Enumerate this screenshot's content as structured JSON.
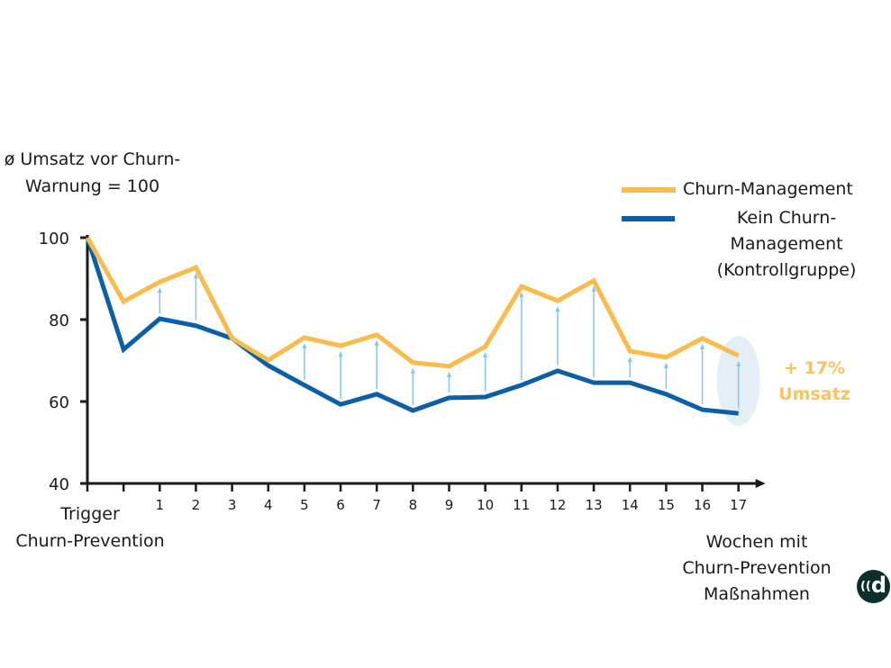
{
  "chart_data": {
    "type": "line",
    "title": "",
    "ylabel": "ø Umsatz vor Churn-Warnung = 100",
    "xlabel": "Wochen mit Churn-Prevention Maßnahmen",
    "x_start_label": "Trigger Churn-Prevention",
    "categories": [
      "",
      "",
      "1",
      "2",
      "3",
      "4",
      "5",
      "6",
      "7",
      "8",
      "9",
      "10",
      "11",
      "12",
      "13",
      "14",
      "15",
      "16",
      "17"
    ],
    "yticks": [
      40,
      60,
      80,
      100
    ],
    "ylim": [
      40,
      100
    ],
    "grid": false,
    "legend": "top-right",
    "series": [
      {
        "name": "Churn-Management",
        "color": "#f9bb4c",
        "values": [
          100,
          84.4,
          89.2,
          92.7,
          75.4,
          70.1,
          75.6,
          73.6,
          76.3,
          69.5,
          68.6,
          73.4,
          88.1,
          84.6,
          89.5,
          72.3,
          70.8,
          75.4,
          71.2
        ]
      },
      {
        "name": "Kein Churn-Management (Kontrollgruppe)",
        "color": "#0a5fa6",
        "values": [
          100,
          72.7,
          80.2,
          78.5,
          75.4,
          68.8,
          64.0,
          59.3,
          61.8,
          57.8,
          60.9,
          61.1,
          64.0,
          67.5,
          64.6,
          64.6,
          61.8,
          58.0,
          57.1
        ]
      }
    ],
    "uplift_arrows_at": [
      "1",
      "2",
      "5",
      "6",
      "7",
      "8",
      "9",
      "10",
      "11",
      "12",
      "13",
      "14",
      "15",
      "16",
      "17"
    ],
    "arrow_color": "#7ec8ea",
    "highlight_color": "#e3eef6",
    "annotation": {
      "line1": "+ 17%",
      "line2": "Umsatz",
      "color": "#f9c35e"
    }
  },
  "legend": {
    "item1": "Churn-Management",
    "item2_line1": "Kein Churn-Management",
    "item2_line2": "(Kontrollgruppe)"
  },
  "labels": {
    "ylabel_line1": "ø Umsatz vor Churn-",
    "ylabel_line2": "Warnung = 100",
    "trigger_line1": "Trigger",
    "trigger_line2": "Churn-Prevention",
    "weeks_line1": "Wochen mit",
    "weeks_line2": "Churn-Prevention",
    "weeks_line3": "Maßnahmen"
  },
  "logo": {
    "text": "d",
    "icon": "signal-d-logo",
    "color": "#0d2e2b"
  }
}
